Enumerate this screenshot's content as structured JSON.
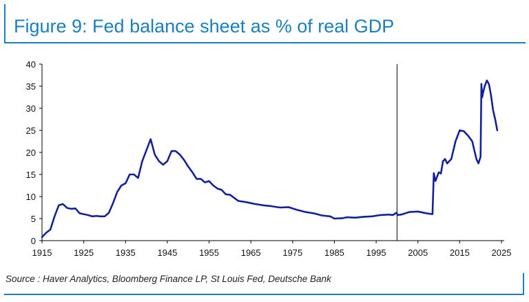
{
  "title": "Figure 9: Fed balance sheet as % of real GDP",
  "source": "Source : Haver Analytics, Bloomberg Finance LP, St Louis Fed, Deutsche Bank",
  "colors": {
    "accent": "#1a7fc1",
    "series": "#14209a",
    "axis": "#000000"
  },
  "chart_data": {
    "type": "line",
    "title": "",
    "xlabel": "",
    "ylabel": "",
    "xlim": [
      1915,
      2025
    ],
    "ylim": [
      0,
      40
    ],
    "grid": false,
    "x_ticks": [
      1915,
      1925,
      1935,
      1945,
      1955,
      1965,
      1975,
      1985,
      1995,
      2005,
      2015,
      2025
    ],
    "y_ticks": [
      0,
      5,
      10,
      15,
      20,
      25,
      30,
      35,
      40
    ],
    "x_tick_labels": [
      "1915",
      "1925",
      "1935",
      "1945",
      "1955",
      "1965",
      "1975",
      "1985",
      "1995",
      "2005",
      "2015",
      "2025"
    ],
    "y_tick_labels": [
      "0",
      "5",
      "10",
      "15",
      "20",
      "25",
      "30",
      "35",
      "40"
    ],
    "vertical_marker_x": 2000,
    "series": [
      {
        "x": [
          1915,
          1916,
          1917,
          1918,
          1919,
          1920,
          1921,
          1922,
          1923,
          1924,
          1925,
          1926,
          1927,
          1928,
          1929,
          1930,
          1931,
          1932,
          1933,
          1934,
          1935,
          1936,
          1937,
          1938,
          1939,
          1940,
          1941,
          1942,
          1943,
          1944,
          1945,
          1946,
          1947,
          1948,
          1949,
          1950,
          1951,
          1952,
          1953,
          1954,
          1955,
          1956,
          1957,
          1958,
          1959,
          1960,
          1962,
          1964,
          1966,
          1968,
          1970,
          1972,
          1974,
          1976,
          1978,
          1980,
          1982,
          1984,
          1985,
          1987,
          1988,
          1990,
          1992,
          1994,
          1996,
          1998,
          1999,
          1999.8,
          2000.2,
          2001,
          2003,
          2005,
          2007,
          2008.5,
          2008.8,
          2009.2,
          2010,
          2010.5,
          2011,
          2011.5,
          2012,
          2013,
          2014,
          2015,
          2016,
          2017,
          2018,
          2019,
          2019.5,
          2020,
          2020.2,
          2020.4,
          2020.6,
          2021,
          2021.5,
          2022,
          2022.5,
          2023,
          2023.5,
          2024
        ],
        "values": [
          0.8,
          1.8,
          2.5,
          5.5,
          8.0,
          8.3,
          7.4,
          7.2,
          7.3,
          6.2,
          6.0,
          5.8,
          5.5,
          5.6,
          5.5,
          5.5,
          6.3,
          8.5,
          11.0,
          12.5,
          13.0,
          15.0,
          15.0,
          14.2,
          18.0,
          20.5,
          23.0,
          19.5,
          18.0,
          17.2,
          18.0,
          20.3,
          20.3,
          19.5,
          18.3,
          16.8,
          15.5,
          14.0,
          14.0,
          13.2,
          13.5,
          12.5,
          11.8,
          11.5,
          10.5,
          10.4,
          9.0,
          8.7,
          8.3,
          8.0,
          7.8,
          7.5,
          7.6,
          7.0,
          6.5,
          6.2,
          5.7,
          5.5,
          5.0,
          5.1,
          5.3,
          5.2,
          5.4,
          5.5,
          5.8,
          5.9,
          5.8,
          6.3,
          5.8,
          5.9,
          6.5,
          6.6,
          6.2,
          6.0,
          15.3,
          13.5,
          15.5,
          15.2,
          18.0,
          18.5,
          17.5,
          18.5,
          22.5,
          25.0,
          24.8,
          23.8,
          22.5,
          18.5,
          17.5,
          19.0,
          35.5,
          32.5,
          33.5,
          35.0,
          36.3,
          35.5,
          33.0,
          29.5,
          27.5,
          25.0
        ]
      }
    ]
  }
}
